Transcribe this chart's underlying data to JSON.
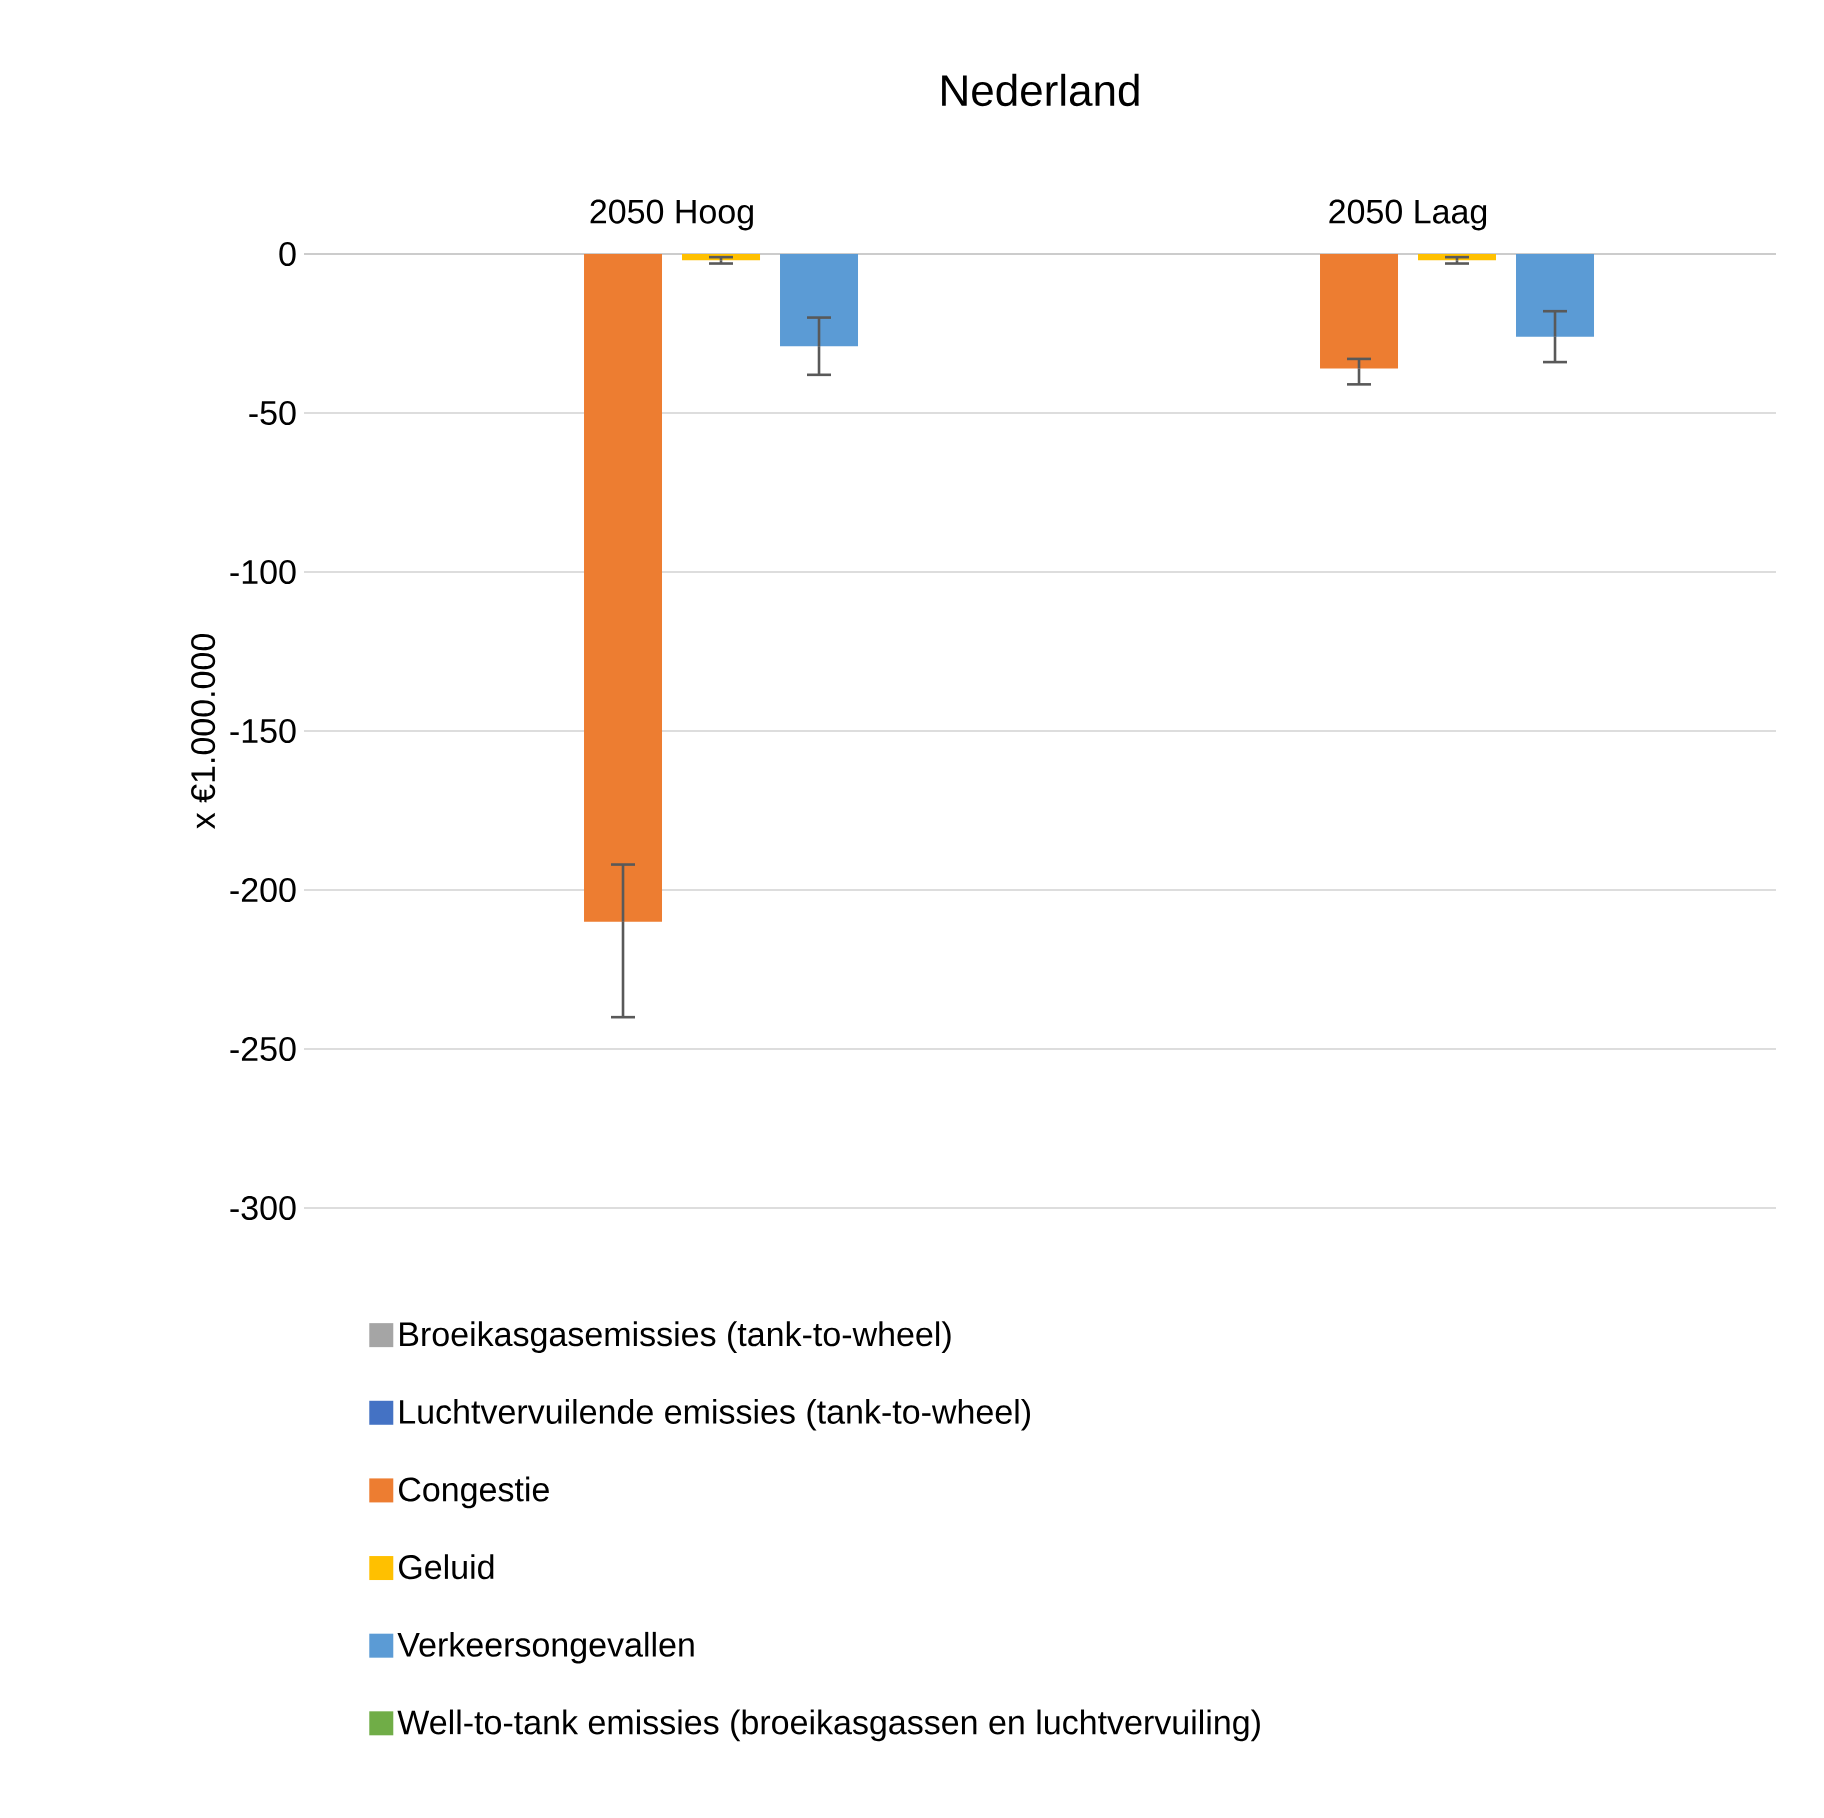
{
  "chart_data": {
    "type": "bar",
    "title": "Nederland",
    "ylabel": "x €1.000.000",
    "categories": [
      "2050 Hoog",
      "2050 Laag"
    ],
    "series": [
      {
        "name": "Broeikasgasemissies (tank-to-wheel)",
        "color": "#a5a5a5",
        "values": [
          0,
          0
        ]
      },
      {
        "name": "Luchtvervuilende emissies (tank-to-wheel)",
        "color": "#4472c4",
        "values": [
          0,
          0
        ]
      },
      {
        "name": "Congestie",
        "color": "#ed7d31",
        "values": [
          -210,
          -36
        ],
        "errors": [
          [
            -240,
            -192
          ],
          [
            -41,
            -33
          ]
        ]
      },
      {
        "name": "Geluid",
        "color": "#ffc000",
        "values": [
          -2,
          -2
        ],
        "errors": [
          [
            -3,
            -1
          ],
          [
            -3,
            -1
          ]
        ]
      },
      {
        "name": "Verkeersongevallen",
        "color": "#5b9bd5",
        "values": [
          -29,
          -26
        ],
        "errors": [
          [
            -38,
            -20
          ],
          [
            -34,
            -18
          ]
        ]
      },
      {
        "name": "Well-to-tank emissies (broeikasgassen en luchtvervuiling)",
        "color": "#70ad47",
        "values": [
          0,
          0
        ]
      }
    ],
    "ylim": [
      -300,
      0
    ],
    "yticks": [
      -300,
      -250,
      -200,
      -150,
      -100,
      -50,
      0
    ],
    "grid": "y",
    "legend": "bottom"
  }
}
